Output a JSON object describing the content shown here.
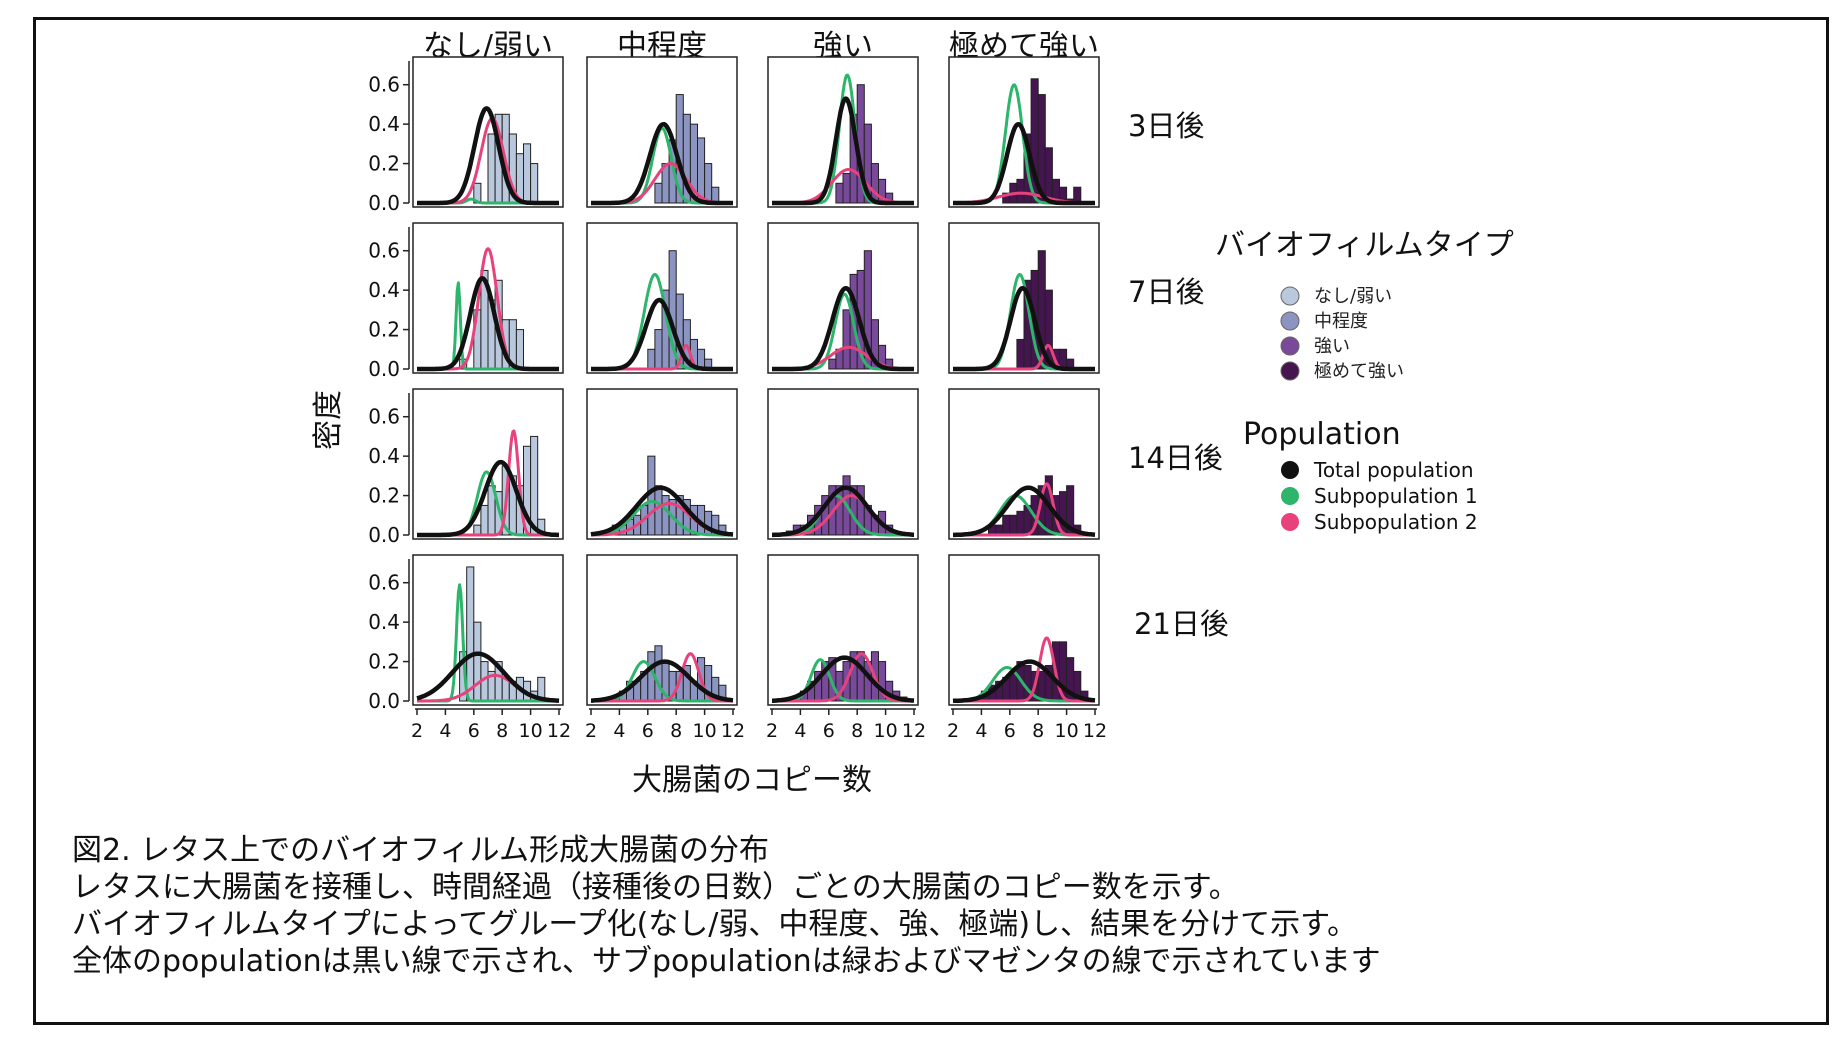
{
  "colors": {
    "total": "#111111",
    "sub1": "#2db56b",
    "sub2": "#e8427c",
    "types": [
      "#b9c8dc",
      "#8c95c2",
      "#7a4a9a",
      "#45154f"
    ]
  },
  "chart_data": {
    "type": "histogram-facet-grid",
    "columns": [
      "なし/弱い",
      "中程度",
      "強い",
      "極めて強い"
    ],
    "rows": [
      "3日後",
      "7日後",
      "14日後",
      "21日後"
    ],
    "xlabel": "大腸菌のコピー数",
    "ylabel": "密度",
    "xlim": [
      2,
      12
    ],
    "ylim": [
      0,
      0.7
    ],
    "xticks": [
      "2",
      "4",
      "6",
      "8",
      "10",
      "12"
    ],
    "yticks": [
      "0.0",
      "0.2",
      "0.4",
      "0.6"
    ],
    "bin_width": 0.5,
    "bin_start": 2,
    "panels": [
      [
        {
          "hist": [
            0,
            0,
            0,
            0,
            0,
            0,
            0,
            0,
            0.1,
            0,
            0.35,
            0.45,
            0.45,
            0.35,
            0.25,
            0.3,
            0.2,
            0,
            0,
            0
          ],
          "total": [
            6.9,
            0.85,
            0.48
          ],
          "s1": [
            5.8,
            0.3,
            0.02
          ],
          "s2": [
            7.3,
            0.78,
            0.43
          ]
        },
        {
          "hist": [
            0,
            0,
            0,
            0,
            0,
            0,
            0,
            0,
            0,
            0.1,
            0.2,
            0.32,
            0.55,
            0.45,
            0.4,
            0.33,
            0.2,
            0.08,
            0,
            0
          ],
          "total": [
            7.1,
            0.95,
            0.4
          ],
          "s1": [
            7.0,
            0.65,
            0.38
          ],
          "s2": [
            7.6,
            1.1,
            0.2
          ]
        },
        {
          "hist": [
            0,
            0,
            0,
            0,
            0,
            0,
            0,
            0,
            0,
            0.1,
            0.15,
            0.45,
            0.6,
            0.4,
            0.2,
            0.12,
            0.05,
            0,
            0,
            0
          ],
          "total": [
            7.2,
            0.7,
            0.53
          ],
          "s1": [
            7.3,
            0.55,
            0.65
          ],
          "s2": [
            7.4,
            1.2,
            0.17
          ]
        },
        {
          "hist": [
            0,
            0,
            0,
            0,
            0,
            0,
            0,
            0.05,
            0.1,
            0.12,
            0.35,
            0.63,
            0.55,
            0.28,
            0.12,
            0.08,
            0.02,
            0.08,
            0,
            0
          ],
          "total": [
            6.6,
            0.8,
            0.4
          ],
          "s1": [
            6.3,
            0.6,
            0.6
          ],
          "s2": [
            6.8,
            1.6,
            0.05
          ]
        }
      ],
      [
        {
          "hist": [
            0,
            0,
            0,
            0,
            0,
            0,
            0.05,
            0,
            0.3,
            0.5,
            0.35,
            0.45,
            0.25,
            0.25,
            0.2,
            0,
            0,
            0,
            0,
            0
          ],
          "total": [
            6.6,
            0.85,
            0.46
          ],
          "s1": [
            4.9,
            0.15,
            0.44
          ],
          "s2": [
            7.0,
            0.65,
            0.61
          ]
        },
        {
          "hist": [
            0,
            0,
            0,
            0,
            0,
            0,
            0,
            0,
            0.1,
            0.2,
            0.4,
            0.6,
            0.38,
            0.25,
            0.15,
            0.1,
            0.05,
            0,
            0,
            0
          ],
          "total": [
            6.8,
            0.95,
            0.35
          ],
          "s1": [
            6.5,
            0.75,
            0.48
          ],
          "s2": [
            8.7,
            0.3,
            0.12
          ]
        },
        {
          "hist": [
            0,
            0,
            0,
            0,
            0,
            0,
            0,
            0,
            0.05,
            0.1,
            0.3,
            0.48,
            0.5,
            0.6,
            0.25,
            0.12,
            0.05,
            0,
            0,
            0
          ],
          "total": [
            7.2,
            0.95,
            0.41
          ],
          "s1": [
            7.1,
            0.65,
            0.38
          ],
          "s2": [
            7.4,
            1.3,
            0.11
          ]
        },
        {
          "hist": [
            0,
            0,
            0,
            0,
            0,
            0,
            0,
            0,
            0,
            0.15,
            0.45,
            0.5,
            0.6,
            0.4,
            0.1,
            0.1,
            0.05,
            0,
            0,
            0
          ],
          "total": [
            6.9,
            0.85,
            0.41
          ],
          "s1": [
            6.7,
            0.65,
            0.48
          ],
          "s2": [
            8.7,
            0.35,
            0.12
          ]
        }
      ],
      [
        {
          "hist": [
            0,
            0,
            0,
            0,
            0,
            0,
            0,
            0,
            0.05,
            0.15,
            0.25,
            0.22,
            0.35,
            0.3,
            0.25,
            0.45,
            0.5,
            0.08,
            0,
            0
          ],
          "total": [
            7.9,
            1.1,
            0.37
          ],
          "s1": [
            6.9,
            0.65,
            0.32
          ],
          "s2": [
            8.8,
            0.35,
            0.53
          ]
        },
        {
          "hist": [
            0,
            0,
            0.02,
            0.05,
            0.05,
            0.08,
            0.1,
            0.15,
            0.4,
            0.25,
            0.2,
            0.18,
            0.2,
            0.18,
            0.15,
            0.15,
            0.12,
            0.1,
            0.05,
            0
          ],
          "total": [
            6.9,
            1.7,
            0.24
          ],
          "s1": [
            6.3,
            1.3,
            0.17
          ],
          "s2": [
            7.5,
            1.5,
            0.16
          ]
        },
        {
          "hist": [
            0,
            0,
            0.02,
            0.05,
            0.05,
            0.1,
            0.15,
            0.2,
            0.25,
            0.25,
            0.3,
            0.25,
            0.25,
            0.15,
            0.1,
            0.12,
            0.05,
            0,
            0,
            0
          ],
          "total": [
            7.2,
            1.5,
            0.24
          ],
          "s1": [
            6.5,
            1.0,
            0.2
          ],
          "s2": [
            7.6,
            1.3,
            0.2
          ]
        },
        {
          "hist": [
            0,
            0,
            0,
            0,
            0,
            0.05,
            0.05,
            0.1,
            0.1,
            0.12,
            0.15,
            0.2,
            0.25,
            0.3,
            0.2,
            0.22,
            0.25,
            0.05,
            0,
            0
          ],
          "total": [
            7.3,
            1.5,
            0.24
          ],
          "s1": [
            6.4,
            1.1,
            0.2
          ],
          "s2": [
            8.6,
            0.45,
            0.26
          ]
        }
      ],
      [
        {
          "hist": [
            0,
            0,
            0,
            0,
            0,
            0,
            0.25,
            0.68,
            0.4,
            0.2,
            0.15,
            0.2,
            0.12,
            0.1,
            0.12,
            0.1,
            0.05,
            0.12,
            0,
            0
          ],
          "total": [
            6.3,
            1.8,
            0.24
          ],
          "s1": [
            5.0,
            0.22,
            0.59
          ],
          "s2": [
            7.5,
            1.4,
            0.13
          ]
        },
        {
          "hist": [
            0,
            0,
            0,
            0.02,
            0.05,
            0.1,
            0.1,
            0.15,
            0.25,
            0.28,
            0.2,
            0.15,
            0.15,
            0.18,
            0.1,
            0.22,
            0.18,
            0.12,
            0.08,
            0
          ],
          "total": [
            7.2,
            1.7,
            0.2
          ],
          "s1": [
            5.7,
            0.8,
            0.2
          ],
          "s2": [
            9.0,
            0.6,
            0.24
          ]
        },
        {
          "hist": [
            0,
            0,
            0,
            0.02,
            0.05,
            0.1,
            0.15,
            0.2,
            0.22,
            0.15,
            0.2,
            0.25,
            0.25,
            0.2,
            0.25,
            0.2,
            0.1,
            0.05,
            0.02,
            0
          ],
          "total": [
            7.1,
            1.6,
            0.22
          ],
          "s1": [
            5.4,
            0.65,
            0.21
          ],
          "s2": [
            8.3,
            0.8,
            0.24
          ]
        },
        {
          "hist": [
            0,
            0,
            0,
            0.02,
            0.05,
            0.08,
            0.1,
            0.12,
            0.15,
            0.2,
            0.18,
            0.15,
            0.15,
            0.18,
            0.3,
            0.3,
            0.22,
            0.15,
            0.05,
            0
          ],
          "total": [
            7.4,
            1.6,
            0.2
          ],
          "s1": [
            5.8,
            1.0,
            0.17
          ],
          "s2": [
            8.6,
            0.5,
            0.32
          ]
        }
      ]
    ]
  },
  "legend": {
    "type_title": "バイオフィルムタイプ",
    "type_items": [
      "なし/弱い",
      "中程度",
      "強い",
      "極めて強い"
    ],
    "pop_title": "Population",
    "pop_items": [
      "Total population",
      "Subpopulation 1",
      "Subpopulation 2"
    ]
  },
  "caption": [
    "図2. レタス上でのバイオフィルム形成大腸菌の分布",
    "レタスに大腸菌を接種し、時間経過（接種後の日数）ごとの大腸菌のコピー数を示す。",
    "バイオフィルムタイプによってグループ化(なし/弱、中程度、強、極端)し、結果を分けて示す。",
    "全体のpopulationは黒い線で示され、サブpopulationは緑およびマゼンタの線で示されています"
  ]
}
